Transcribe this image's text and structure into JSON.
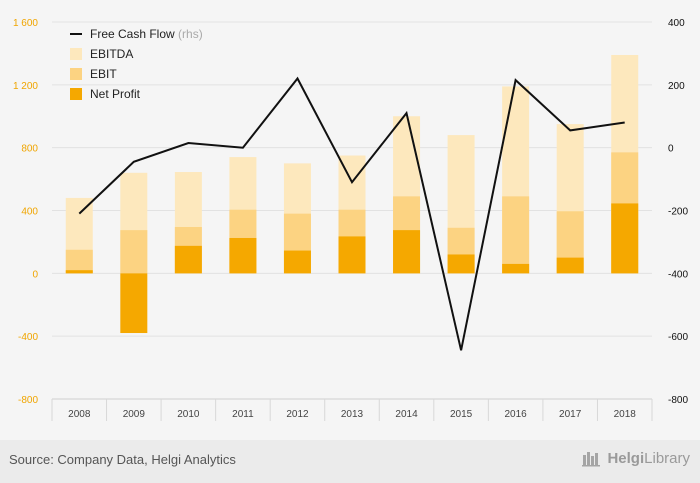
{
  "chart_data": {
    "type": "bar",
    "categories": [
      "2008",
      "2009",
      "2010",
      "2011",
      "2012",
      "2013",
      "2014",
      "2015",
      "2016",
      "2017",
      "2018"
    ],
    "series": [
      {
        "name": "EBITDA",
        "kind": "bar",
        "axis": "left",
        "color": "#fde8bd",
        "values": [
          480,
          640,
          645,
          740,
          700,
          750,
          1000,
          880,
          1190,
          950,
          1390
        ]
      },
      {
        "name": "EBIT",
        "kind": "bar",
        "axis": "left",
        "color": "#fcd382",
        "values": [
          150,
          275,
          295,
          405,
          380,
          405,
          490,
          290,
          490,
          395,
          770
        ]
      },
      {
        "name": "Net Profit",
        "kind": "bar",
        "axis": "left",
        "color": "#f5a800",
        "values": [
          20,
          -380,
          175,
          225,
          145,
          235,
          275,
          120,
          60,
          100,
          445
        ]
      },
      {
        "name": "Free Cash Flow",
        "label_suffix": "(rhs)",
        "kind": "line",
        "axis": "right",
        "color": "#111111",
        "values": [
          -210,
          -45,
          15,
          0,
          220,
          -110,
          110,
          -645,
          215,
          55,
          80
        ]
      }
    ],
    "y_left": {
      "min": -800,
      "max": 1600,
      "ticks": [
        -800,
        -400,
        0,
        400,
        800,
        1200,
        1600
      ],
      "tick_labels": [
        "-800",
        "-400",
        "0",
        "400",
        "800",
        "1 200",
        "1 600"
      ],
      "color": "#f0a500"
    },
    "y_right": {
      "min": -800,
      "max": 400,
      "ticks": [
        -800,
        -600,
        -400,
        -200,
        0,
        200,
        400
      ],
      "tick_labels": [
        "-800",
        "-600",
        "-400",
        "-200",
        "0",
        "200",
        "400"
      ],
      "color": "#111111"
    },
    "grid": true,
    "legend": "top-left"
  },
  "footer": {
    "source": "Source: Company Data, Helgi Analytics",
    "brand_prefix": "Helgi",
    "brand_suffix": "Library"
  }
}
